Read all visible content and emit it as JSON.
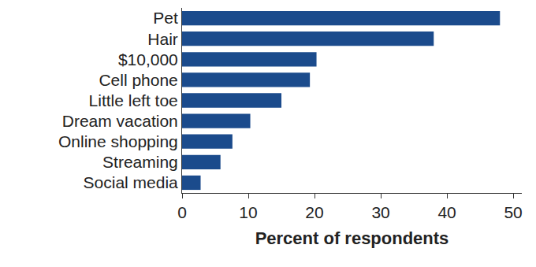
{
  "chart_data": {
    "type": "bar",
    "orientation": "horizontal",
    "categories": [
      "Pet",
      "Hair",
      "$10,000",
      "Cell phone",
      "Little left toe",
      "Dream vacation",
      "Online shopping",
      "Streaming",
      "Social media"
    ],
    "values": [
      48,
      38,
      20.3,
      19.3,
      15,
      10.3,
      7.6,
      5.8,
      2.8
    ],
    "color": "#1b4b8c",
    "x_label": "Percent of respondents",
    "xlim": [
      0,
      51.3
    ],
    "xticks": [
      0,
      10,
      20,
      30,
      40,
      50
    ],
    "grid": false
  }
}
